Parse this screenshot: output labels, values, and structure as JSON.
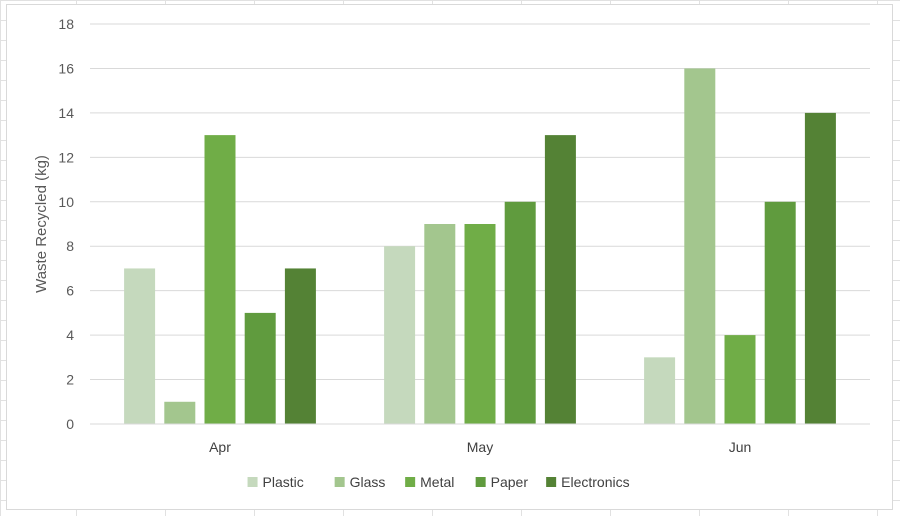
{
  "chart_data": {
    "type": "bar",
    "title": "",
    "xlabel": "",
    "ylabel": "Waste Recycled (kg)",
    "ylim": [
      0,
      18
    ],
    "yticks": [
      0,
      2,
      4,
      6,
      8,
      10,
      12,
      14,
      16,
      18
    ],
    "categories": [
      "Apr",
      "May",
      "Jun"
    ],
    "series": [
      {
        "name": "Plastic",
        "values": [
          7,
          8,
          3
        ],
        "color": "#c5d9bd"
      },
      {
        "name": "Glass",
        "values": [
          1,
          9,
          16
        ],
        "color": "#a3c68e"
      },
      {
        "name": "Metal",
        "values": [
          13,
          9,
          4
        ],
        "color": "#70ad47"
      },
      {
        "name": "Paper",
        "values": [
          5,
          10,
          10
        ],
        "color": "#609b3e"
      },
      {
        "name": "Electronics",
        "values": [
          7,
          13,
          14
        ],
        "color": "#548235"
      }
    ],
    "grid": true,
    "legend_position": "bottom"
  }
}
